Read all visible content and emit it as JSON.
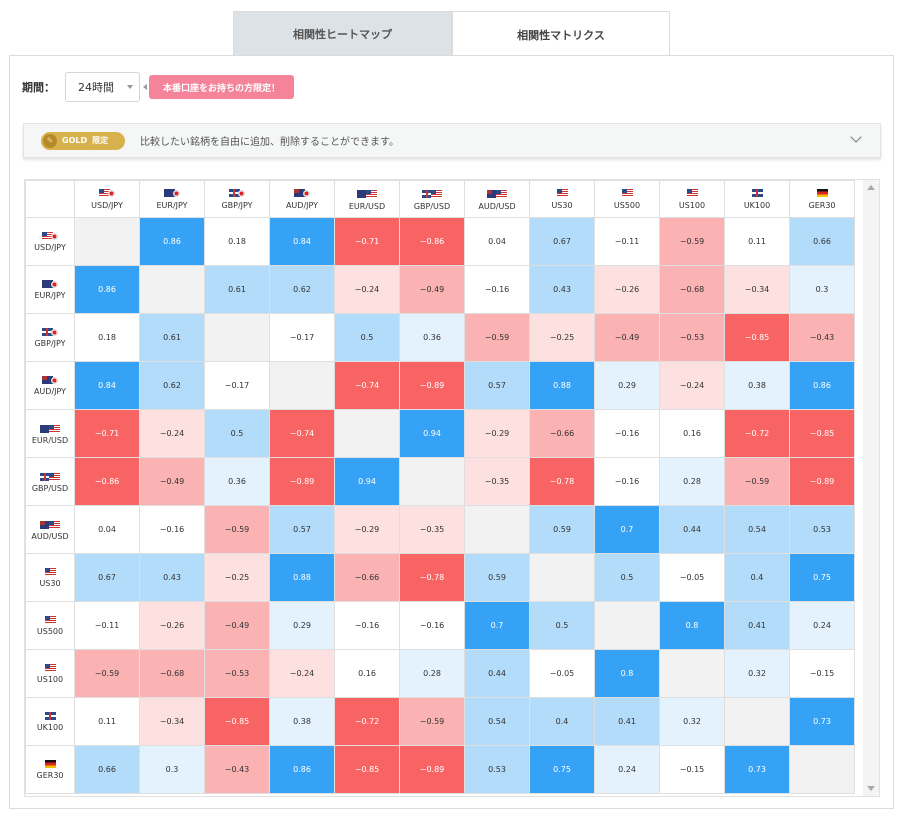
{
  "tabs": [
    {
      "label": "相関性ヒートマップ",
      "active": false
    },
    {
      "label": "相関性マトリクス",
      "active": true
    }
  ],
  "period": {
    "label": "期間：",
    "selected": "24時間",
    "promo": "本番口座をお持ちの方限定！"
  },
  "gold": {
    "badge": "GOLD",
    "badge_sub": "限定",
    "text": "比較したい銘柄を自由に追加、削除することができます。"
  },
  "instruments": [
    {
      "label": "USD/JPY",
      "flags": [
        "us",
        "jp"
      ]
    },
    {
      "label": "EUR/JPY",
      "flags": [
        "eu",
        "jp"
      ]
    },
    {
      "label": "GBP/JPY",
      "flags": [
        "gb",
        "jp"
      ]
    },
    {
      "label": "AUD/JPY",
      "flags": [
        "au",
        "jp"
      ]
    },
    {
      "label": "EUR/USD",
      "flags": [
        "eu",
        "us"
      ]
    },
    {
      "label": "GBP/USD",
      "flags": [
        "gb",
        "us"
      ]
    },
    {
      "label": "AUD/USD",
      "flags": [
        "au",
        "us"
      ]
    },
    {
      "label": "US30",
      "flags": [
        "us"
      ]
    },
    {
      "label": "US500",
      "flags": [
        "us"
      ]
    },
    {
      "label": "US100",
      "flags": [
        "us"
      ]
    },
    {
      "label": "UK100",
      "flags": [
        "gb"
      ]
    },
    {
      "label": "GER30",
      "flags": [
        "de"
      ]
    }
  ],
  "matrix": [
    [
      null,
      "0.86",
      "0.18",
      "0.84",
      "−0.71",
      "−0.86",
      "0.04",
      "0.67",
      "−0.11",
      "−0.59",
      "0.11",
      "0.66"
    ],
    [
      "0.86",
      null,
      "0.61",
      "0.62",
      "−0.24",
      "−0.49",
      "−0.16",
      "0.43",
      "−0.26",
      "−0.68",
      "−0.34",
      "0.3"
    ],
    [
      "0.18",
      "0.61",
      null,
      "−0.17",
      "0.5",
      "0.36",
      "−0.59",
      "−0.25",
      "−0.49",
      "−0.53",
      "−0.85",
      "−0.43"
    ],
    [
      "0.84",
      "0.62",
      "−0.17",
      null,
      "−0.74",
      "−0.89",
      "0.57",
      "0.88",
      "0.29",
      "−0.24",
      "0.38",
      "0.86"
    ],
    [
      "−0.71",
      "−0.24",
      "0.5",
      "−0.74",
      null,
      "0.94",
      "−0.29",
      "−0.66",
      "−0.16",
      "0.16",
      "−0.72",
      "−0.85"
    ],
    [
      "−0.86",
      "−0.49",
      "0.36",
      "−0.89",
      "0.94",
      null,
      "−0.35",
      "−0.78",
      "−0.16",
      "0.28",
      "−0.59",
      "−0.89"
    ],
    [
      "0.04",
      "−0.16",
      "−0.59",
      "0.57",
      "−0.29",
      "−0.35",
      null,
      "0.59",
      "0.7",
      "0.44",
      "0.54",
      "0.53"
    ],
    [
      "0.67",
      "0.43",
      "−0.25",
      "0.88",
      "−0.66",
      "−0.78",
      "0.59",
      null,
      "0.5",
      "−0.05",
      "0.4",
      "0.75"
    ],
    [
      "−0.11",
      "−0.26",
      "−0.49",
      "0.29",
      "−0.16",
      "−0.16",
      "0.7",
      "0.5",
      null,
      "0.8",
      "0.41",
      "0.24"
    ],
    [
      "−0.59",
      "−0.68",
      "−0.53",
      "−0.24",
      "0.16",
      "0.28",
      "0.44",
      "−0.05",
      "0.8",
      null,
      "0.32",
      "−0.15"
    ],
    [
      "0.11",
      "−0.34",
      "−0.85",
      "0.38",
      "−0.72",
      "−0.59",
      "0.54",
      "0.4",
      "0.41",
      "0.32",
      null,
      "0.73"
    ],
    [
      "0.66",
      "0.3",
      "−0.43",
      "0.86",
      "−0.85",
      "−0.89",
      "0.53",
      "0.75",
      "0.24",
      "−0.15",
      "0.73",
      null
    ]
  ],
  "colors": {
    "strong_pos": "#35a2f5",
    "mid_pos": "#b3dcfa",
    "weak_pos": "#e4f2fd",
    "neutral": "#ffffff",
    "weak_neg": "#fde0e0",
    "mid_neg": "#fbb2b2",
    "strong_neg": "#f86464",
    "diagonal": "#f2f2f2"
  }
}
